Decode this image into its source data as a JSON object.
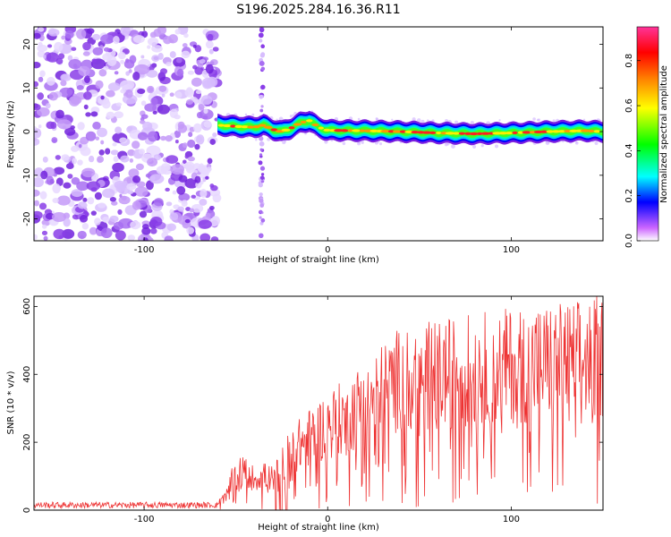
{
  "chart_data": [
    {
      "type": "heatmap",
      "title": "S196.2025.284.16.36.R11",
      "xlabel": "Height of straight line (km)",
      "ylabel": "Frequency (Hz)",
      "xlim": [
        -160,
        150
      ],
      "ylim": [
        -25,
        24
      ],
      "x_ticks": [
        -100,
        0,
        100
      ],
      "y_ticks": [
        -20,
        -10,
        0,
        10,
        20
      ],
      "colorbar": {
        "label": "Normalized spectral amplitude",
        "range": [
          0,
          0.95
        ],
        "ticks": [
          0.0,
          0.2,
          0.4,
          0.6,
          0.8
        ],
        "tick_labels": [
          "0.0",
          "0.2",
          "0.4",
          "0.6",
          "0.8"
        ],
        "colors": [
          "#ffffff",
          "#cc66ff",
          "#0000ff",
          "#00ffff",
          "#00ff00",
          "#ffff00",
          "#ff8800",
          "#ff0000",
          "#ff3399"
        ]
      },
      "noise_region_x": [
        -160,
        -60
      ],
      "ridge": {
        "x": [
          -60,
          -50,
          -40,
          -35,
          -30,
          -25,
          -20,
          -15,
          -10,
          -5,
          0,
          20,
          40,
          60,
          80,
          100,
          120,
          140,
          150
        ],
        "y": [
          1.5,
          1.2,
          1.0,
          1.5,
          0.5,
          0.0,
          0.8,
          2.0,
          2.5,
          1.0,
          0.3,
          0.2,
          0.0,
          -0.3,
          -0.5,
          -0.3,
          0.0,
          0.2,
          0.0
        ],
        "peak_amplitude": 0.9
      },
      "vertical_streak_x": -36
    },
    {
      "type": "line",
      "xlabel": "Height of straight line (km)",
      "ylabel": "SNR (10 * v/v)",
      "xlim": [
        -160,
        150
      ],
      "ylim": [
        0,
        630
      ],
      "x_ticks": [
        -100,
        0,
        100
      ],
      "y_ticks": [
        0,
        200,
        400,
        600
      ],
      "series": [
        {
          "name": "SNR",
          "color": "#ee3333",
          "envelope_x": [
            -160,
            -100,
            -60,
            -55,
            -50,
            -45,
            -40,
            -35,
            -30,
            -25,
            -20,
            -10,
            0,
            10,
            20,
            30,
            40,
            60,
            80,
            100,
            120,
            140,
            150
          ],
          "envelope_y": [
            20,
            20,
            20,
            50,
            130,
            120,
            100,
            110,
            100,
            140,
            190,
            230,
            270,
            300,
            340,
            380,
            420,
            430,
            450,
            460,
            470,
            480,
            490
          ]
        }
      ]
    }
  ]
}
